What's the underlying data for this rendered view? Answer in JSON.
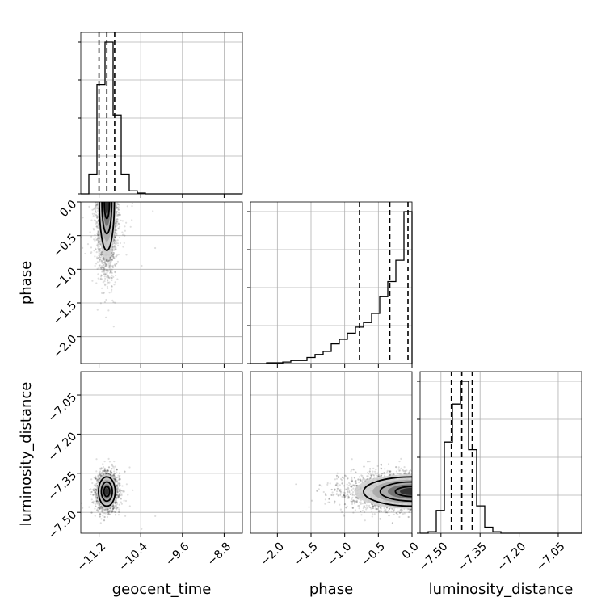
{
  "chart_data": {
    "type": "corner",
    "parameters": [
      "geocent_time",
      "phase",
      "luminosity_distance"
    ],
    "axis_labels": {
      "geocent_time": "geocent_time",
      "phase": "phase",
      "luminosity_distance": "luminosity_distance"
    },
    "ticks": {
      "geocent_time": {
        "values": [
          -11.2,
          -10.4,
          -9.6,
          -8.8
        ],
        "labels": [
          "−11.2",
          "−10.4",
          "−9.6",
          "−8.8"
        ],
        "range": [
          -11.55,
          -8.45
        ]
      },
      "phase": {
        "values": [
          -2.0,
          -1.5,
          -1.0,
          -0.5,
          0.0
        ],
        "labels": [
          "−2.0",
          "−1.5",
          "−1.0",
          "−0.5",
          "0.0"
        ],
        "range": [
          -2.4,
          0.0
        ]
      },
      "luminosity_distance": {
        "values": [
          -7.5,
          -7.35,
          -7.2,
          -7.05
        ],
        "labels": [
          "−7.50",
          "−7.35",
          "−7.20",
          "−7.05"
        ],
        "range": [
          -7.58,
          -6.96
        ]
      }
    },
    "histograms": [
      {
        "parameter": "geocent_time",
        "bin_edges": [
          -11.55,
          -11.395,
          -11.24,
          -11.085,
          -10.93,
          -10.775,
          -10.62,
          -10.465,
          -10.31,
          -10.155,
          -10.0,
          -9.845,
          -9.69,
          -9.535,
          -9.38,
          -9.225,
          -9.07,
          -8.915,
          -8.76,
          -8.605,
          -8.45
        ],
        "counts": [
          0.0,
          0.13,
          0.72,
          1.0,
          0.52,
          0.13,
          0.02,
          0.005,
          0,
          0,
          0,
          0,
          0,
          0,
          0,
          0,
          0,
          0,
          0,
          0
        ],
        "quantiles": [
          -11.2,
          -11.05,
          -10.9
        ]
      },
      {
        "parameter": "phase",
        "bin_edges": [
          -2.4,
          -2.28,
          -2.16,
          -2.04,
          -1.92,
          -1.8,
          -1.68,
          -1.56,
          -1.44,
          -1.32,
          -1.2,
          -1.08,
          -0.96,
          -0.84,
          -0.72,
          -0.6,
          -0.48,
          -0.36,
          -0.24,
          -0.12,
          0.0
        ],
        "counts": [
          0.0,
          0.0,
          0.005,
          0.005,
          0.01,
          0.02,
          0.02,
          0.04,
          0.06,
          0.08,
          0.13,
          0.16,
          0.2,
          0.24,
          0.27,
          0.33,
          0.44,
          0.54,
          0.68,
          1.0
        ],
        "quantiles": [
          -0.78,
          -0.33,
          -0.06
        ]
      },
      {
        "parameter": "luminosity_distance",
        "bin_edges": [
          -7.58,
          -7.549,
          -7.518,
          -7.487,
          -7.456,
          -7.425,
          -7.394,
          -7.363,
          -7.332,
          -7.301,
          -7.27,
          -7.239,
          -7.208,
          -7.177,
          -7.146,
          -7.115,
          -7.084,
          -7.053,
          -7.022,
          -6.991,
          -6.96
        ],
        "counts": [
          0.0,
          0.01,
          0.15,
          0.6,
          0.85,
          1.0,
          0.55,
          0.18,
          0.04,
          0.01,
          0,
          0,
          0,
          0,
          0,
          0,
          0,
          0,
          0,
          0
        ],
        "quantiles": [
          -7.46,
          -7.42,
          -7.38
        ]
      }
    ],
    "scatter_panels": [
      {
        "x": "geocent_time",
        "y": "phase",
        "x_center": -11.05,
        "x_spread": 0.09,
        "y_peak": 0.0,
        "y_decay": 0.45
      },
      {
        "x": "geocent_time",
        "y": "luminosity_distance",
        "x_center": -11.05,
        "x_spread": 0.1,
        "y_center": -7.42,
        "y_spread": 0.035
      },
      {
        "x": "phase",
        "y": "luminosity_distance",
        "x_peak": 0.0,
        "x_decay": 0.45,
        "y_center": -7.42,
        "y_spread": 0.035
      }
    ],
    "grid": true,
    "layout": "3x3 lower triangular"
  }
}
